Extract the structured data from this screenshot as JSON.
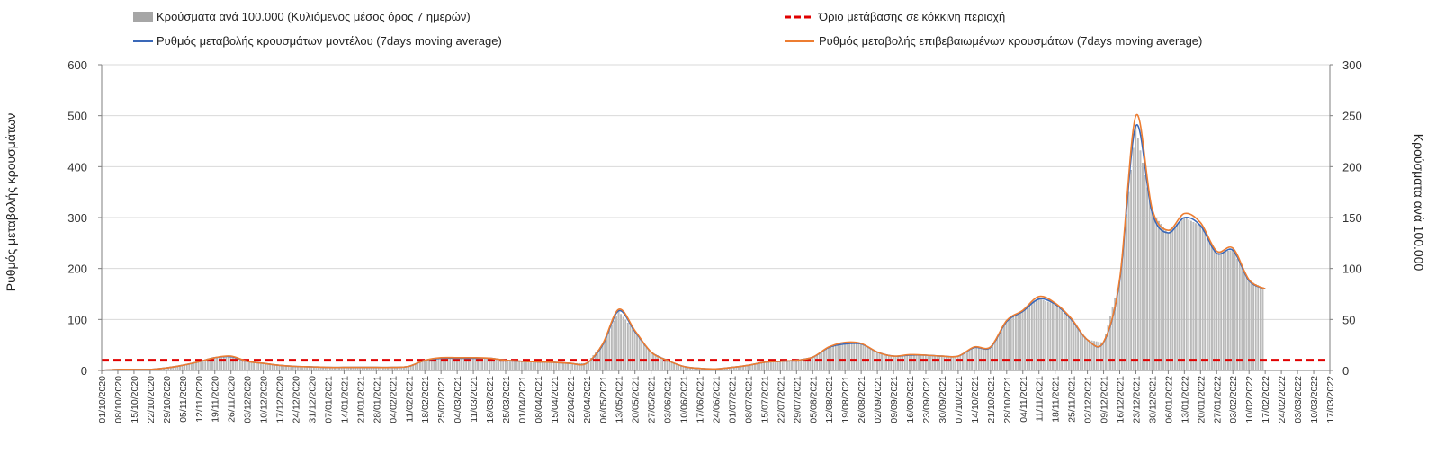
{
  "chart_data": {
    "type": "bar+line",
    "legend": [
      {
        "key": "bars",
        "label": "Κρούσματα ανά 100.000 (Κυλιόμενος μέσος όρος 7 ημερών)",
        "color": "#a6a6a6"
      },
      {
        "key": "threshold",
        "label": "Όριο μετάβασης σε κόκκινη περιοχή",
        "color": "#e00000"
      },
      {
        "key": "model",
        "label": "Ρυθμός μεταβολής κρουσμάτων μοντέλου (7days moving average)",
        "color": "#3a68b8"
      },
      {
        "key": "confirmed",
        "label": "Ρυθμός μεταβολής επιβεβαιωμένων κρουσμάτων (7days moving average)",
        "color": "#ed7d31"
      }
    ],
    "y_left": {
      "label": "Ρυθμός μεταβολής κρουσμάτων",
      "min": 0,
      "max": 600,
      "ticks": [
        "0",
        "100",
        "200",
        "300",
        "400",
        "500",
        "600"
      ]
    },
    "y_right": {
      "label": "Κρούσματα ανά 100.000",
      "min": 0,
      "max": 300,
      "ticks": [
        "0",
        "50",
        "100",
        "150",
        "200",
        "250",
        "300"
      ]
    },
    "x_ticks": [
      "01/10/2020",
      "08/10/2020",
      "15/10/2020",
      "22/10/2020",
      "29/10/2020",
      "05/11/2020",
      "12/11/2020",
      "19/11/2020",
      "26/11/2020",
      "03/12/2020",
      "10/12/2020",
      "17/12/2020",
      "24/12/2020",
      "31/12/2020",
      "07/01/2021",
      "14/01/2021",
      "21/01/2021",
      "28/01/2021",
      "04/02/2021",
      "11/02/2021",
      "18/02/2021",
      "25/02/2021",
      "04/03/2021",
      "11/03/2021",
      "18/03/2021",
      "25/03/2021",
      "01/04/2021",
      "08/04/2021",
      "15/04/2021",
      "22/04/2021",
      "29/04/2021",
      "06/05/2021",
      "13/05/2021",
      "20/05/2021",
      "27/05/2021",
      "03/06/2021",
      "10/06/2021",
      "17/06/2021",
      "24/06/2021",
      "01/07/2021",
      "08/07/2021",
      "15/07/2021",
      "22/07/2021",
      "29/07/2021",
      "05/08/2021",
      "12/08/2021",
      "19/08/2021",
      "26/08/2021",
      "02/09/2021",
      "09/09/2021",
      "16/09/2021",
      "23/09/2021",
      "30/09/2021",
      "07/10/2021",
      "14/10/2021",
      "21/10/2021",
      "28/10/2021",
      "04/11/2021",
      "11/11/2021",
      "18/11/2021",
      "25/11/2021",
      "02/12/2021",
      "09/12/2021",
      "16/12/2021",
      "23/12/2021",
      "30/12/2021",
      "06/01/2022",
      "13/01/2022",
      "20/01/2022",
      "27/01/2022",
      "03/02/2022",
      "10/02/2022",
      "17/02/2022",
      "24/02/2022",
      "03/03/2022",
      "10/03/2022",
      "17/03/2022"
    ],
    "threshold_right": 10,
    "bars_right": [
      0,
      1,
      1,
      1,
      2,
      4,
      8,
      12,
      13,
      9,
      7,
      5,
      4,
      3,
      3,
      3,
      3,
      3,
      3,
      4,
      10,
      12,
      12,
      12,
      12,
      10,
      9,
      8,
      8,
      7,
      7,
      25,
      58,
      38,
      18,
      10,
      4,
      2,
      1,
      3,
      5,
      8,
      9,
      10,
      13,
      22,
      26,
      26,
      18,
      14,
      15,
      15,
      14,
      14,
      22,
      22,
      48,
      58,
      70,
      65,
      50,
      30,
      27,
      88,
      240,
      155,
      135,
      150,
      142,
      115,
      118,
      88,
      80
    ],
    "model_left": [
      0,
      2,
      2,
      2,
      5,
      10,
      17,
      25,
      27,
      18,
      14,
      10,
      8,
      7,
      6,
      6,
      6,
      6,
      6,
      8,
      20,
      24,
      24,
      24,
      24,
      20,
      18,
      17,
      16,
      14,
      14,
      50,
      117,
      76,
      36,
      20,
      8,
      4,
      3,
      6,
      10,
      16,
      18,
      20,
      26,
      45,
      52,
      52,
      36,
      28,
      30,
      30,
      28,
      28,
      45,
      45,
      96,
      116,
      140,
      130,
      100,
      60,
      55,
      176,
      480,
      310,
      270,
      300,
      284,
      230,
      236,
      176,
      160
    ],
    "confirmed_left": [
      0,
      2,
      2,
      2,
      5,
      10,
      17,
      25,
      28,
      18,
      14,
      10,
      8,
      7,
      6,
      6,
      6,
      6,
      6,
      8,
      20,
      25,
      25,
      25,
      24,
      20,
      18,
      17,
      16,
      14,
      14,
      52,
      120,
      78,
      36,
      20,
      8,
      4,
      3,
      6,
      10,
      16,
      18,
      20,
      26,
      46,
      55,
      53,
      36,
      28,
      31,
      30,
      28,
      28,
      46,
      46,
      98,
      118,
      145,
      132,
      102,
      60,
      56,
      180,
      500,
      318,
      275,
      308,
      290,
      234,
      240,
      178,
      160
    ]
  }
}
